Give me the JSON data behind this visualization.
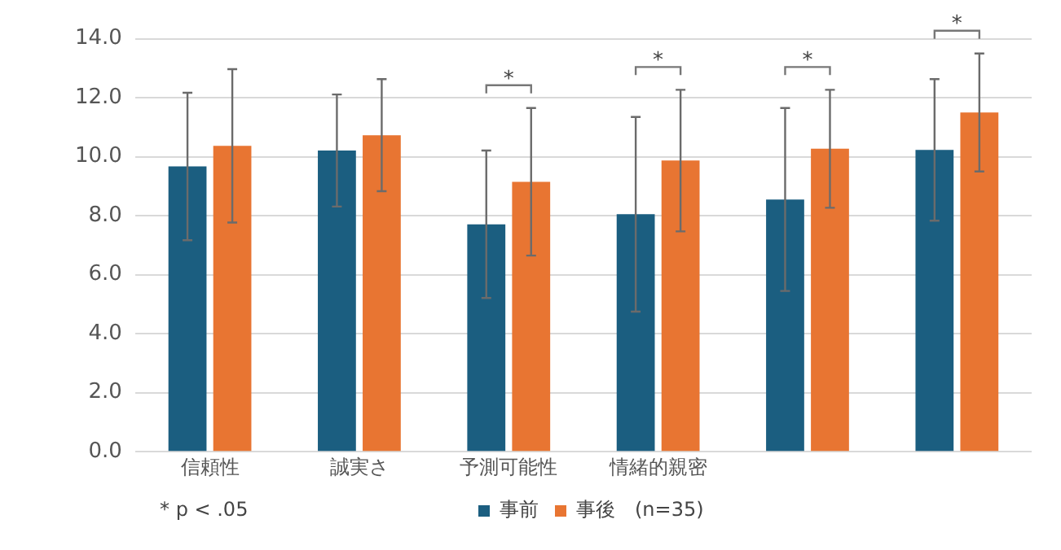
{
  "chart_data": {
    "type": "bar",
    "categories": [
      "信頼性",
      "誠実さ",
      "予測可能性",
      "情緒的親密",
      null,
      null
    ],
    "series": [
      {
        "name": "事前",
        "color": "#1b5e80",
        "values": [
          9.67,
          10.21,
          7.71,
          8.05,
          8.55,
          10.23
        ],
        "errors": [
          2.5,
          1.9,
          2.5,
          3.3,
          3.1,
          2.4
        ]
      },
      {
        "name": "事後",
        "color": "#e87532",
        "values": [
          10.37,
          10.73,
          9.15,
          9.87,
          10.27,
          11.5
        ],
        "errors": [
          2.6,
          1.9,
          2.5,
          2.4,
          2.0,
          2.0
        ]
      }
    ],
    "ylim": [
      0,
      14
    ],
    "yticks": [
      {
        "value": 0,
        "label": "0.0"
      },
      {
        "value": 2,
        "label": "2.0"
      },
      {
        "value": 4,
        "label": "4.0"
      },
      {
        "value": 6,
        "label": "6.0"
      },
      {
        "value": 8,
        "label": "8.0"
      },
      {
        "value": 10,
        "label": "10.0"
      },
      {
        "value": 12,
        "label": "12.0"
      },
      {
        "value": 14,
        "label": "14.0"
      }
    ],
    "grid": "y",
    "legend": "bottom",
    "annotations": [
      "*",
      "*",
      "*",
      "*",
      "* p < .05",
      "(n=35)"
    ]
  }
}
